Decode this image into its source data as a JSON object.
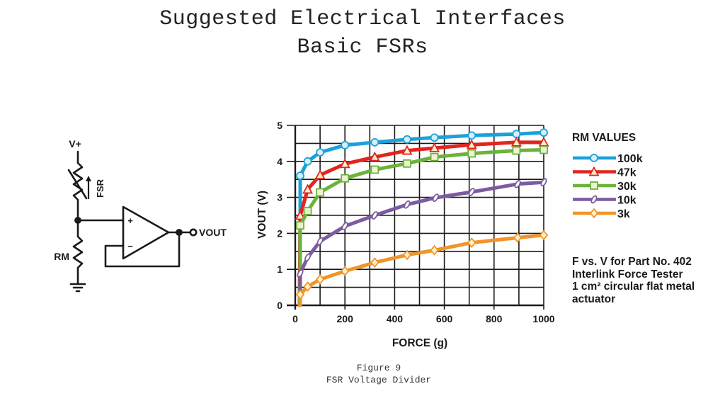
{
  "header": {
    "title_line1": "Suggested Electrical Interfaces",
    "title_line2": "Basic FSRs"
  },
  "circuit": {
    "supply_label": "V+",
    "fsr_label": "FSR",
    "rm_label": "RM",
    "output_label": "VOUT",
    "plus_label": "+",
    "minus_label": "−"
  },
  "legend": {
    "title": "RM VALUES"
  },
  "note": {
    "lines": [
      "F vs. V for Part No. 402",
      "Interlink Force Tester",
      "1 cm² circular flat metal",
      "actuator"
    ]
  },
  "caption": {
    "line1": "Figure 9",
    "line2": "FSR Voltage Divider"
  },
  "colors": {
    "100k": "#1ba1da",
    "47k": "#e1251f",
    "30k": "#6cb33a",
    "10k": "#7b5ca0",
    "3k": "#f0952a",
    "grid": "#1a1a1a"
  },
  "chart_data": {
    "type": "line",
    "title": "",
    "xlabel": "FORCE (g)",
    "ylabel": "VOUT (V)",
    "xlim": [
      0,
      1000
    ],
    "ylim": [
      0,
      5
    ],
    "xticks": [
      0,
      200,
      400,
      600,
      800,
      1000
    ],
    "yticks": [
      0,
      1,
      2,
      3,
      4,
      5
    ],
    "grid": {
      "x_step": 100,
      "y_step": 0.5
    },
    "legend_title": "RM VALUES",
    "legend_position": "right",
    "series": [
      {
        "name": "100k",
        "marker": "circle",
        "color": "#1ba1da",
        "marker_fill": "#d6eff8",
        "x": [
          20,
          20,
          50,
          100,
          200,
          320,
          450,
          560,
          710,
          890,
          1000
        ],
        "values": [
          2.5,
          3.6,
          4.0,
          4.25,
          4.45,
          4.53,
          4.61,
          4.66,
          4.72,
          4.76,
          4.8
        ]
      },
      {
        "name": "47k",
        "marker": "triangle",
        "color": "#e1251f",
        "marker_fill": "#f7edc8",
        "x": [
          20,
          50,
          100,
          200,
          320,
          450,
          560,
          710,
          890,
          1000
        ],
        "values": [
          2.49,
          3.22,
          3.62,
          3.93,
          4.12,
          4.3,
          4.37,
          4.46,
          4.53,
          4.53
        ]
      },
      {
        "name": "30k",
        "marker": "square",
        "color": "#6cb33a",
        "marker_fill": "#eaf3d2",
        "x": [
          20,
          20,
          50,
          100,
          200,
          320,
          450,
          560,
          710,
          890,
          1000
        ],
        "values": [
          0.8,
          2.22,
          2.62,
          3.14,
          3.53,
          3.77,
          3.94,
          4.12,
          4.22,
          4.3,
          4.32
        ]
      },
      {
        "name": "10k",
        "marker": "ellipse",
        "color": "#7b5ca0",
        "marker_fill": "#ffffff",
        "x": [
          20,
          20,
          50,
          100,
          200,
          320,
          450,
          565,
          710,
          895,
          1000
        ],
        "values": [
          0.1,
          0.89,
          1.33,
          1.78,
          2.2,
          2.5,
          2.8,
          2.99,
          3.15,
          3.37,
          3.42
        ]
      },
      {
        "name": "3k",
        "marker": "diamond",
        "color": "#f0952a",
        "marker_fill": "#fbf3cc",
        "x": [
          20,
          20,
          50,
          100,
          200,
          320,
          450,
          560,
          710,
          895,
          1000
        ],
        "values": [
          0.0,
          0.3,
          0.52,
          0.72,
          0.95,
          1.19,
          1.4,
          1.53,
          1.74,
          1.88,
          1.95
        ]
      }
    ]
  }
}
